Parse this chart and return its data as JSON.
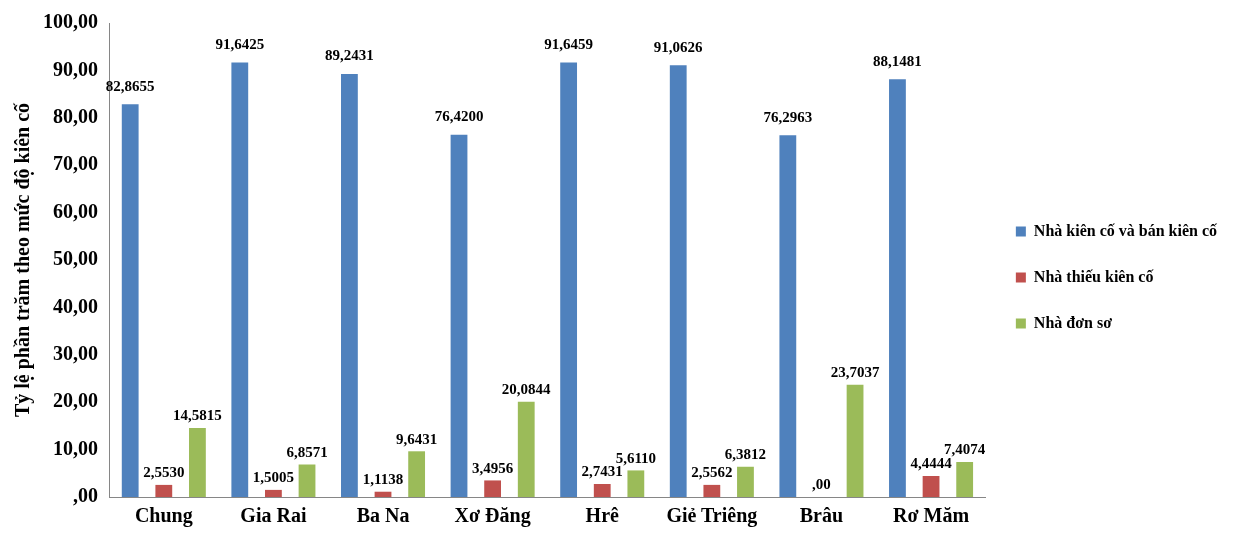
{
  "chart_data": {
    "type": "bar",
    "ylabel": "Tỷ lệ phần trăm theo mức độ kiên cố",
    "categories": [
      "Chung",
      "Gia Rai",
      "Ba Na",
      "Xơ Đăng",
      "Hrê",
      "Giẻ Triêng",
      "Brâu",
      "Rơ Măm"
    ],
    "series": [
      {
        "name": "Nhà kiên cố và bán kiên cố",
        "color": "#4f81bd",
        "values": [
          82.8655,
          91.6425,
          89.2431,
          76.42,
          91.6459,
          91.0626,
          76.2963,
          88.1481
        ],
        "value_labels": [
          "82,8655",
          "91,6425",
          "89,2431",
          "76,4200",
          "91,6459",
          "91,0626",
          "76,2963",
          "88,1481"
        ]
      },
      {
        "name": "Nhà thiếu kiên cố",
        "color": "#c0504d",
        "values": [
          2.553,
          1.5005,
          1.1138,
          3.4956,
          2.7431,
          2.5562,
          0,
          4.4444
        ],
        "value_labels": [
          "2,5530",
          "1,5005",
          "1,1138",
          "3,4956",
          "2,7431",
          "2,5562",
          ",00",
          "4,4444"
        ]
      },
      {
        "name": "Nhà đơn sơ",
        "color": "#9bbb59",
        "values": [
          14.5815,
          6.8571,
          9.6431,
          20.0844,
          5.611,
          6.3812,
          23.7037,
          7.4074
        ],
        "value_labels": [
          "14,5815",
          "6,8571",
          "9,6431",
          "20,0844",
          "5,6110",
          "6,3812",
          "23,7037",
          "7,4074"
        ]
      }
    ],
    "ylim": [
      0,
      100
    ],
    "yticks": [
      {
        "value": 0,
        "label": ",00"
      },
      {
        "value": 10,
        "label": "10,00"
      },
      {
        "value": 20,
        "label": "20,00"
      },
      {
        "value": 30,
        "label": "30,00"
      },
      {
        "value": 40,
        "label": "40,00"
      },
      {
        "value": 50,
        "label": "50,00"
      },
      {
        "value": 60,
        "label": "60,00"
      },
      {
        "value": 70,
        "label": "70,00"
      },
      {
        "value": 80,
        "label": "80,00"
      },
      {
        "value": 90,
        "label": "90,00"
      },
      {
        "value": 100,
        "label": "100,00"
      }
    ],
    "grid": false,
    "legend": "right"
  }
}
